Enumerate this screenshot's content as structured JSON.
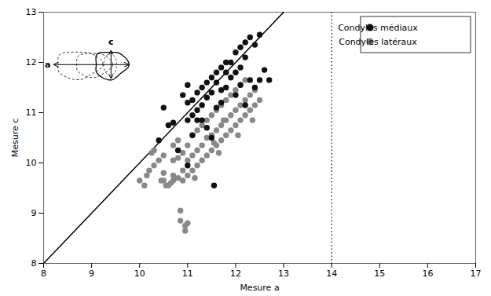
{
  "chart_data": {
    "type": "scatter",
    "title": "",
    "xlabel": "Mesure a",
    "ylabel": "Mesure c",
    "xlim": [
      8,
      17
    ],
    "ylim": [
      8,
      13
    ],
    "xticks": [
      8,
      9,
      10,
      11,
      12,
      13,
      14,
      15,
      16,
      17
    ],
    "yticks": [
      8,
      9,
      10,
      11,
      12,
      13
    ],
    "legend": "upper right",
    "series": [
      {
        "name": "Condyles médiaux",
        "color": "#111111",
        "marker": "circle",
        "values": [
          [
            10.4,
            10.45
          ],
          [
            10.5,
            11.1
          ],
          [
            10.6,
            10.75
          ],
          [
            10.7,
            10.8
          ],
          [
            10.8,
            10.25
          ],
          [
            10.9,
            11.35
          ],
          [
            11.0,
            11.2
          ],
          [
            11.0,
            10.85
          ],
          [
            11.0,
            11.55
          ],
          [
            11.1,
            11.25
          ],
          [
            11.1,
            10.55
          ],
          [
            11.1,
            10.95
          ],
          [
            11.2,
            11.4
          ],
          [
            11.2,
            10.85
          ],
          [
            11.2,
            11.05
          ],
          [
            11.3,
            11.15
          ],
          [
            11.3,
            11.5
          ],
          [
            11.3,
            10.85
          ],
          [
            11.4,
            11.3
          ],
          [
            11.4,
            11.6
          ],
          [
            11.4,
            10.7
          ],
          [
            11.5,
            11.4
          ],
          [
            11.5,
            11.7
          ],
          [
            11.5,
            10.5
          ],
          [
            11.6,
            11.6
          ],
          [
            11.6,
            11.1
          ],
          [
            11.6,
            11.8
          ],
          [
            11.7,
            11.45
          ],
          [
            11.7,
            11.9
          ],
          [
            11.7,
            11.2
          ],
          [
            11.8,
            11.5
          ],
          [
            11.8,
            11.8
          ],
          [
            11.8,
            12.0
          ],
          [
            11.9,
            11.7
          ],
          [
            11.9,
            12.0
          ],
          [
            12.0,
            11.8
          ],
          [
            12.0,
            12.2
          ],
          [
            12.0,
            11.35
          ],
          [
            12.1,
            12.3
          ],
          [
            12.1,
            11.9
          ],
          [
            12.1,
            11.55
          ],
          [
            12.2,
            12.4
          ],
          [
            12.2,
            12.1
          ],
          [
            12.2,
            11.15
          ],
          [
            12.3,
            12.5
          ],
          [
            12.3,
            11.65
          ],
          [
            12.4,
            12.35
          ],
          [
            12.4,
            11.5
          ],
          [
            12.5,
            12.55
          ],
          [
            12.5,
            11.65
          ],
          [
            12.6,
            11.85
          ],
          [
            12.7,
            11.65
          ],
          [
            11.0,
            9.95
          ],
          [
            11.55,
            9.55
          ]
        ]
      },
      {
        "name": "Condyles latéraux",
        "color": "#888888",
        "marker": "circle",
        "values": [
          [
            10.0,
            9.65
          ],
          [
            10.1,
            9.55
          ],
          [
            10.15,
            9.75
          ],
          [
            10.2,
            9.85
          ],
          [
            10.25,
            10.2
          ],
          [
            10.3,
            9.95
          ],
          [
            10.3,
            10.25
          ],
          [
            10.4,
            10.05
          ],
          [
            10.45,
            9.65
          ],
          [
            10.5,
            9.65
          ],
          [
            10.5,
            9.8
          ],
          [
            10.5,
            10.15
          ],
          [
            10.55,
            9.55
          ],
          [
            10.6,
            9.55
          ],
          [
            10.65,
            9.6
          ],
          [
            10.7,
            9.65
          ],
          [
            10.7,
            9.75
          ],
          [
            10.7,
            10.05
          ],
          [
            10.7,
            10.35
          ],
          [
            10.8,
            9.7
          ],
          [
            10.8,
            10.1
          ],
          [
            10.8,
            10.45
          ],
          [
            10.85,
            8.85
          ],
          [
            10.85,
            9.05
          ],
          [
            10.9,
            9.65
          ],
          [
            10.9,
            9.85
          ],
          [
            10.9,
            10.2
          ],
          [
            10.95,
            8.75
          ],
          [
            10.95,
            8.65
          ],
          [
            11.0,
            9.75
          ],
          [
            11.0,
            10.05
          ],
          [
            11.0,
            10.35
          ],
          [
            11.0,
            8.8
          ],
          [
            11.1,
            9.85
          ],
          [
            11.1,
            10.15
          ],
          [
            11.1,
            10.55
          ],
          [
            11.15,
            9.7
          ],
          [
            11.2,
            9.95
          ],
          [
            11.2,
            10.25
          ],
          [
            11.2,
            10.65
          ],
          [
            11.3,
            10.05
          ],
          [
            11.3,
            10.35
          ],
          [
            11.3,
            10.75
          ],
          [
            11.4,
            10.15
          ],
          [
            11.4,
            10.5
          ],
          [
            11.4,
            10.85
          ],
          [
            11.5,
            10.25
          ],
          [
            11.5,
            10.55
          ],
          [
            11.5,
            10.95
          ],
          [
            11.55,
            10.4
          ],
          [
            11.6,
            10.35
          ],
          [
            11.6,
            10.65
          ],
          [
            11.6,
            11.05
          ],
          [
            11.65,
            10.2
          ],
          [
            11.7,
            10.45
          ],
          [
            11.7,
            10.75
          ],
          [
            11.7,
            11.15
          ],
          [
            11.75,
            10.85
          ],
          [
            11.8,
            10.55
          ],
          [
            11.8,
            10.85
          ],
          [
            11.8,
            11.25
          ],
          [
            11.9,
            10.65
          ],
          [
            11.9,
            10.95
          ],
          [
            11.9,
            11.35
          ],
          [
            12.0,
            10.75
          ],
          [
            12.0,
            11.05
          ],
          [
            12.0,
            11.45
          ],
          [
            12.05,
            10.55
          ],
          [
            12.1,
            10.85
          ],
          [
            12.1,
            11.15
          ],
          [
            12.1,
            11.55
          ],
          [
            12.2,
            10.95
          ],
          [
            12.2,
            11.25
          ],
          [
            12.2,
            11.65
          ],
          [
            12.3,
            11.05
          ],
          [
            12.3,
            11.35
          ],
          [
            12.35,
            10.85
          ],
          [
            12.4,
            11.15
          ],
          [
            12.4,
            11.45
          ],
          [
            12.5,
            11.25
          ]
        ]
      }
    ],
    "reference_lines": [
      {
        "type": "line",
        "x": [
          8,
          17
        ],
        "y": [
          8,
          17
        ],
        "color": "black",
        "line_style": "solid"
      },
      {
        "type": "vline",
        "x": 14,
        "color": "black",
        "line_style": "dotted"
      }
    ],
    "annotations": [
      "a",
      "c"
    ]
  }
}
